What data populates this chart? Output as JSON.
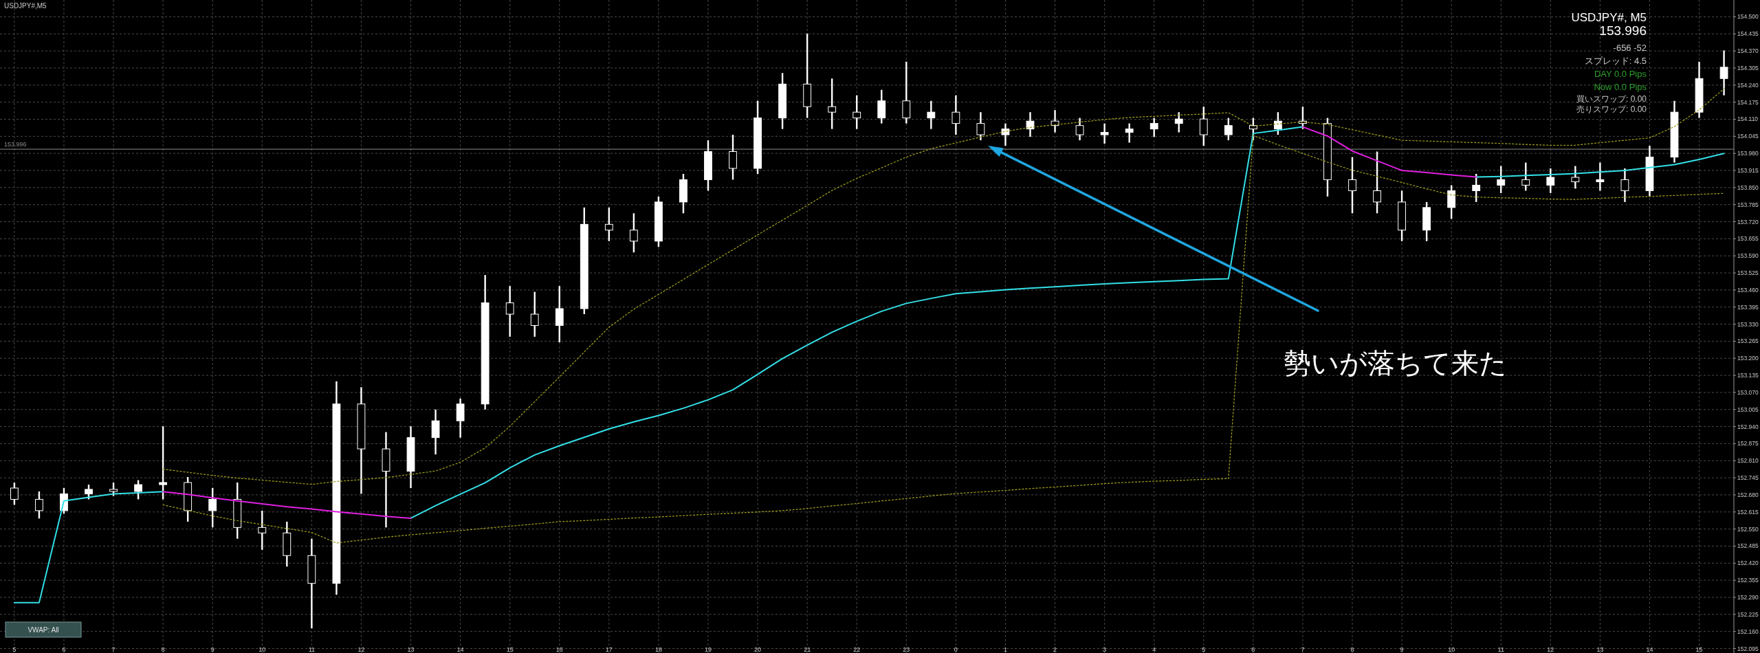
{
  "chart_data": {
    "type": "candlestick",
    "title": "USDJPY#,M5",
    "categories": [
      "5",
      null,
      "6",
      null,
      "7",
      null,
      "8",
      null,
      "9",
      null,
      "10",
      null,
      "11",
      null,
      "12",
      null,
      "13",
      null,
      "14",
      null,
      "15",
      null,
      "16",
      null,
      "17",
      null,
      "18",
      null,
      "19",
      null,
      "20",
      null,
      "21",
      null,
      "22",
      null,
      "23",
      null,
      "0",
      null,
      "1",
      null,
      "2",
      null,
      "3",
      null,
      "4",
      null,
      "5",
      null,
      "6",
      null,
      "7",
      null,
      "8",
      null,
      "9",
      null,
      "10",
      null,
      "11",
      null,
      "12",
      null,
      "13",
      null,
      "14",
      null,
      "15",
      null
    ],
    "ohlc": [
      [
        152.706,
        152.727,
        152.642,
        152.663
      ],
      [
        152.663,
        152.693,
        152.59,
        152.62
      ],
      [
        152.62,
        152.706,
        152.608,
        152.684
      ],
      [
        152.684,
        152.719,
        152.663,
        152.701
      ],
      [
        152.701,
        152.727,
        152.676,
        152.693
      ],
      [
        152.693,
        152.736,
        152.663,
        152.719
      ],
      [
        152.719,
        152.941,
        152.663,
        152.727
      ],
      [
        152.727,
        152.748,
        152.578,
        152.62
      ],
      [
        152.62,
        152.706,
        152.556,
        152.663
      ],
      [
        152.663,
        152.727,
        152.513,
        152.556
      ],
      [
        152.556,
        152.62,
        152.471,
        152.535
      ],
      [
        152.535,
        152.578,
        152.407,
        152.449
      ],
      [
        152.449,
        152.513,
        152.172,
        152.343
      ],
      [
        152.343,
        153.112,
        152.3,
        153.026
      ],
      [
        153.026,
        153.09,
        152.684,
        152.855
      ],
      [
        152.855,
        152.919,
        152.556,
        152.77
      ],
      [
        152.77,
        152.941,
        152.706,
        152.898
      ],
      [
        152.898,
        153.005,
        152.834,
        152.962
      ],
      [
        152.962,
        153.047,
        152.898,
        153.026
      ],
      [
        153.026,
        153.517,
        153.005,
        153.411
      ],
      [
        153.411,
        153.475,
        153.282,
        153.368
      ],
      [
        153.368,
        153.453,
        153.282,
        153.325
      ],
      [
        153.325,
        153.475,
        153.261,
        153.389
      ],
      [
        153.389,
        153.774,
        153.368,
        153.71
      ],
      [
        153.71,
        153.774,
        153.646,
        153.688
      ],
      [
        153.688,
        153.752,
        153.603,
        153.646
      ],
      [
        153.646,
        153.816,
        153.624,
        153.795
      ],
      [
        153.795,
        153.902,
        153.752,
        153.88
      ],
      [
        153.88,
        154.03,
        153.838,
        153.987
      ],
      [
        153.987,
        154.051,
        153.88,
        153.923
      ],
      [
        153.923,
        154.18,
        153.902,
        154.115
      ],
      [
        154.115,
        154.286,
        154.073,
        154.244
      ],
      [
        154.244,
        154.436,
        154.115,
        154.158
      ],
      [
        154.158,
        154.265,
        154.073,
        154.137
      ],
      [
        154.137,
        154.201,
        154.073,
        154.115
      ],
      [
        154.115,
        154.222,
        154.094,
        154.18
      ],
      [
        154.18,
        154.329,
        154.094,
        154.115
      ],
      [
        154.115,
        154.18,
        154.073,
        154.137
      ],
      [
        154.137,
        154.201,
        154.051,
        154.094
      ],
      [
        154.094,
        154.137,
        154.03,
        154.051
      ],
      [
        154.051,
        154.094,
        154.009,
        154.073
      ],
      [
        154.073,
        154.137,
        154.043,
        154.103
      ],
      [
        154.103,
        154.145,
        154.06,
        154.086
      ],
      [
        154.086,
        154.115,
        154.03,
        154.051
      ],
      [
        154.051,
        154.094,
        154.017,
        154.06
      ],
      [
        154.06,
        154.094,
        154.021,
        154.073
      ],
      [
        154.073,
        154.115,
        154.043,
        154.094
      ],
      [
        154.094,
        154.137,
        154.06,
        154.111
      ],
      [
        154.111,
        154.158,
        154.009,
        154.051
      ],
      [
        154.051,
        154.115,
        154.03,
        154.086
      ],
      [
        154.086,
        154.115,
        154.03,
        154.073
      ],
      [
        154.073,
        154.137,
        154.051,
        154.103
      ],
      [
        154.103,
        154.158,
        154.073,
        154.094
      ],
      [
        154.094,
        154.115,
        153.816,
        153.88
      ],
      [
        153.88,
        153.966,
        153.752,
        153.838
      ],
      [
        153.838,
        153.987,
        153.752,
        153.795
      ],
      [
        153.795,
        153.838,
        153.646,
        153.688
      ],
      [
        153.688,
        153.795,
        153.646,
        153.774
      ],
      [
        153.774,
        153.859,
        153.731,
        153.838
      ],
      [
        153.838,
        153.902,
        153.795,
        153.859
      ],
      [
        153.859,
        153.932,
        153.829,
        153.88
      ],
      [
        153.88,
        153.945,
        153.838,
        153.859
      ],
      [
        153.859,
        153.923,
        153.829,
        153.889
      ],
      [
        153.889,
        153.932,
        153.846,
        153.872
      ],
      [
        153.872,
        153.945,
        153.838,
        153.88
      ],
      [
        153.88,
        153.923,
        153.795,
        153.838
      ],
      [
        153.838,
        154.009,
        153.816,
        153.966
      ],
      [
        153.966,
        154.18,
        153.945,
        154.137
      ],
      [
        154.137,
        154.329,
        154.115,
        154.265
      ],
      [
        154.265,
        154.372,
        154.201,
        154.308
      ]
    ],
    "color": "#ffffff",
    "series": [
      {
        "type": "line",
        "color": "#33e0e8",
        "values": [
          152.27,
          152.27,
          152.657,
          152.671,
          152.684,
          152.688,
          152.692,
          null,
          null,
          null,
          null,
          null,
          null,
          null,
          null,
          null,
          152.591,
          152.639,
          152.683,
          152.726,
          152.783,
          152.832,
          152.867,
          152.899,
          152.931,
          152.958,
          152.982,
          153.01,
          153.042,
          153.08,
          153.139,
          153.199,
          153.25,
          153.299,
          153.341,
          153.379,
          153.409,
          153.428,
          153.446,
          153.453,
          153.461,
          153.467,
          153.472,
          153.478,
          153.483,
          153.488,
          153.492,
          153.496,
          153.5,
          153.503,
          154.056,
          154.068,
          154.081,
          null,
          null,
          null,
          null,
          null,
          null,
          153.89,
          153.892,
          153.896,
          153.899,
          153.903,
          153.909,
          153.915,
          153.926,
          153.937,
          153.957,
          153.98
        ]
      },
      {
        "type": "line",
        "color": "#e020e0",
        "values": [
          null,
          null,
          null,
          null,
          null,
          null,
          152.692,
          152.682,
          152.669,
          152.657,
          152.646,
          152.635,
          152.626,
          152.616,
          152.607,
          152.598,
          152.591,
          null,
          null,
          null,
          null,
          null,
          null,
          null,
          null,
          null,
          null,
          null,
          null,
          null,
          null,
          null,
          null,
          null,
          null,
          null,
          null,
          null,
          null,
          null,
          null,
          null,
          null,
          null,
          null,
          null,
          null,
          null,
          null,
          null,
          null,
          null,
          154.081,
          154.046,
          153.989,
          153.952,
          153.915,
          153.907,
          153.898,
          153.89,
          null,
          null,
          null,
          null,
          null,
          null,
          null,
          null,
          null,
          null
        ]
      },
      {
        "type": "line",
        "color": "#9a9a1a",
        "line_style": "dotted",
        "values": [
          null,
          null,
          null,
          null,
          null,
          null,
          152.778,
          152.766,
          152.754,
          152.744,
          152.736,
          152.728,
          152.72,
          152.731,
          152.738,
          152.746,
          152.758,
          152.771,
          152.804,
          152.859,
          152.941,
          153.035,
          153.129,
          153.224,
          153.318,
          153.387,
          153.443,
          153.5,
          153.557,
          153.613,
          153.67,
          153.726,
          153.782,
          153.839,
          153.885,
          153.925,
          153.966,
          153.998,
          154.02,
          154.042,
          154.064,
          154.079,
          154.089,
          154.099,
          154.109,
          154.117,
          154.121,
          154.126,
          154.13,
          154.135,
          154.084,
          154.092,
          154.1,
          154.09,
          154.07,
          154.05,
          154.03,
          154.027,
          154.024,
          154.021,
          154.018,
          154.014,
          154.011,
          154.011,
          154.021,
          154.03,
          154.039,
          154.082,
          154.146,
          154.226
        ]
      },
      {
        "type": "line",
        "color": "#9a9a1a",
        "line_style": "dotted",
        "values": [
          null,
          null,
          null,
          null,
          null,
          null,
          152.642,
          152.621,
          152.6,
          152.582,
          152.567,
          152.552,
          152.537,
          152.497,
          152.508,
          152.519,
          152.528,
          152.536,
          152.544,
          152.553,
          152.561,
          152.569,
          152.578,
          152.582,
          152.587,
          152.592,
          152.596,
          152.601,
          152.606,
          152.61,
          152.615,
          152.62,
          152.628,
          152.638,
          152.647,
          152.657,
          152.666,
          152.676,
          152.685,
          152.691,
          152.697,
          152.704,
          152.71,
          152.716,
          152.723,
          152.728,
          152.732,
          152.735,
          152.739,
          152.742,
          154.048,
          154.013,
          153.98,
          153.947,
          153.916,
          153.893,
          153.869,
          153.845,
          153.822,
          153.814,
          153.811,
          153.809,
          153.806,
          153.805,
          153.809,
          153.813,
          153.816,
          153.82,
          153.824,
          153.828
        ]
      }
    ],
    "ylim": [
      152.078,
      154.564
    ],
    "yticks": [
      {
        "value": 152.095,
        "label": "152.095"
      },
      {
        "value": 152.16,
        "label": "152.160"
      },
      {
        "value": 152.225,
        "label": "152.225"
      },
      {
        "value": 152.29,
        "label": "152.290"
      },
      {
        "value": 152.355,
        "label": "152.355"
      },
      {
        "value": 152.42,
        "label": "152.420"
      },
      {
        "value": 152.485,
        "label": "152.485"
      },
      {
        "value": 152.55,
        "label": "152.550"
      },
      {
        "value": 152.615,
        "label": "152.615"
      },
      {
        "value": 152.68,
        "label": "152.680"
      },
      {
        "value": 152.745,
        "label": "152.745"
      },
      {
        "value": 152.81,
        "label": "152.810"
      },
      {
        "value": 152.875,
        "label": "152.875"
      },
      {
        "value": 152.94,
        "label": "152.940"
      },
      {
        "value": 153.005,
        "label": "153.005"
      },
      {
        "value": 153.07,
        "label": "153.070"
      },
      {
        "value": 153.135,
        "label": "153.135"
      },
      {
        "value": 153.2,
        "label": "153.200"
      },
      {
        "value": 153.265,
        "label": "153.265"
      },
      {
        "value": 153.33,
        "label": "153.330"
      },
      {
        "value": 153.395,
        "label": "153.395"
      },
      {
        "value": 153.46,
        "label": "153.460"
      },
      {
        "value": 153.525,
        "label": "153.525"
      },
      {
        "value": 153.59,
        "label": "153.590"
      },
      {
        "value": 153.655,
        "label": "153.655"
      },
      {
        "value": 153.72,
        "label": "153.720"
      },
      {
        "value": 153.785,
        "label": "153.785"
      },
      {
        "value": 153.85,
        "label": "153.850"
      },
      {
        "value": 153.915,
        "label": "153.915"
      },
      {
        "value": 153.98,
        "label": "153.980"
      },
      {
        "value": 154.045,
        "label": "154.045"
      },
      {
        "value": 154.11,
        "label": "154.110"
      },
      {
        "value": 154.175,
        "label": "154.175"
      },
      {
        "value": 154.24,
        "label": "154.240"
      },
      {
        "value": 154.305,
        "label": "154.305"
      },
      {
        "value": 154.37,
        "label": "154.370"
      },
      {
        "value": 154.435,
        "label": "154.435"
      },
      {
        "value": 154.5,
        "label": "154.500"
      }
    ],
    "grid": true,
    "ref_lines": [
      {
        "axis": "y",
        "value": 153.996,
        "label": "153.996",
        "color": "#8c8c8c"
      }
    ],
    "annotations": [
      "USDJPY#, M5",
      "153.996",
      "-656 -52",
      "スプレッド: 4.5",
      "DAY 0.0 Pips",
      "Now 0.0 Pips",
      "買いスワップ: 0.00",
      "売りスワップ: 0.00",
      "VWAP: All",
      "勢いが落ちて来た"
    ]
  }
}
